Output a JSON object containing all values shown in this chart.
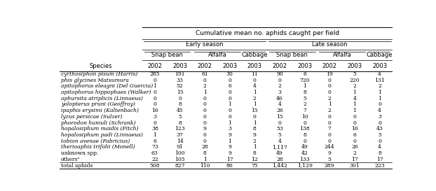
{
  "title": "Cumulative mean no. aphids caught per field",
  "species": [
    "cyrthosiphon pisum (Harris)",
    "phis glycines Matsumura",
    "apitophorus eleagni (Del Guercia)",
    "apitophorus hippophaes (Walker)",
    "aphursita atriplicis (Linnaeus)",
    "yolopterus pruni (Geoffroy)",
    "ipaphis erysimi (Kaltenbach)",
    "lyzus persicae (Sulzer)",
    "phorodon humuli (Schrank)",
    "hopalosiphum maidis (Fitch)",
    "hopalosiphum padi (Linnaeus)",
    "tobion avenae (Fabricius)",
    "therioaphis trifolii (Monell)",
    "unknown spp.",
    "othersᵃ",
    "total aphids"
  ],
  "species_italic": [
    true,
    true,
    true,
    true,
    true,
    true,
    true,
    true,
    true,
    true,
    true,
    true,
    true,
    false,
    false,
    false
  ],
  "data": [
    [
      285,
      191,
      61,
      30,
      11,
      90,
      6,
      19,
      5,
      4
    ],
    [
      0,
      33,
      0,
      0,
      0,
      0,
      720,
      0,
      220,
      131
    ],
    [
      1,
      52,
      2,
      6,
      4,
      2,
      1,
      0,
      2,
      2
    ],
    [
      0,
      15,
      1,
      0,
      1,
      3,
      8,
      0,
      1,
      1
    ],
    [
      0,
      0,
      0,
      0,
      2,
      46,
      5,
      2,
      4,
      1
    ],
    [
      0,
      8,
      0,
      1,
      1,
      4,
      2,
      1,
      1,
      0
    ],
    [
      16,
      45,
      0,
      0,
      15,
      26,
      7,
      2,
      1,
      4
    ],
    [
      3,
      5,
      0,
      0,
      0,
      15,
      10,
      0,
      0,
      3
    ],
    [
      0,
      8,
      0,
      1,
      1,
      0,
      0,
      0,
      0,
      0
    ],
    [
      38,
      123,
      9,
      3,
      8,
      53,
      138,
      7,
      16,
      43
    ],
    [
      1,
      37,
      0,
      9,
      9,
      5,
      8,
      0,
      6,
      5
    ],
    [
      6,
      14,
      0,
      1,
      2,
      4,
      0,
      0,
      0,
      0
    ],
    [
      73,
      91,
      28,
      9,
      1,
      1117,
      49,
      244,
      26,
      4
    ],
    [
      63,
      100,
      8,
      9,
      8,
      49,
      42,
      9,
      2,
      8
    ],
    [
      22,
      105,
      1,
      17,
      12,
      28,
      133,
      5,
      17,
      17
    ],
    [
      508,
      827,
      110,
      86,
      75,
      1442,
      1129,
      289,
      301,
      223
    ]
  ],
  "data_formatted": [
    [
      "285",
      "191",
      "61",
      "30",
      "11",
      "90",
      "6",
      "19",
      "5",
      "4"
    ],
    [
      "0",
      "33",
      "0",
      "0",
      "0",
      "0",
      "720",
      "0",
      "220",
      "131"
    ],
    [
      "1",
      "52",
      "2",
      "6",
      "4",
      "2",
      "1",
      "0",
      "2",
      "2"
    ],
    [
      "0",
      "15",
      "1",
      "0",
      "1",
      "3",
      "8",
      "0",
      "1",
      "1"
    ],
    [
      "0",
      "0",
      "0",
      "0",
      "2",
      "46",
      "5",
      "2",
      "4",
      "1"
    ],
    [
      "0",
      "8",
      "0",
      "1",
      "1",
      "4",
      "2",
      "1",
      "1",
      "0"
    ],
    [
      "16",
      "45",
      "0",
      "0",
      "15",
      "26",
      "7",
      "2",
      "1",
      "4"
    ],
    [
      "3",
      "5",
      "0",
      "0",
      "0",
      "15",
      "10",
      "0",
      "0",
      "3"
    ],
    [
      "0",
      "8",
      "0",
      "1",
      "1",
      "0",
      "0",
      "0",
      "0",
      "0"
    ],
    [
      "38",
      "123",
      "9",
      "3",
      "8",
      "53",
      "138",
      "7",
      "16",
      "43"
    ],
    [
      "1",
      "37",
      "0",
      "9",
      "9",
      "5",
      "8",
      "0",
      "6",
      "5"
    ],
    [
      "6",
      "14",
      "0",
      "1",
      "2",
      "4",
      "0",
      "0",
      "0",
      "0"
    ],
    [
      "73",
      "91",
      "28",
      "9",
      "1",
      "1,117",
      "49",
      "244",
      "26",
      "4"
    ],
    [
      "63",
      "100",
      "8",
      "9",
      "8",
      "49",
      "42",
      "9",
      "2",
      "8"
    ],
    [
      "22",
      "105",
      "1",
      "17",
      "12",
      "28",
      "133",
      "5",
      "17",
      "17"
    ],
    [
      "508",
      "827",
      "110",
      "86",
      "75",
      "1,442",
      "1,129",
      "289",
      "301",
      "223"
    ]
  ],
  "years": [
    "2002",
    "2003",
    "2002",
    "2003",
    "2003",
    "2002",
    "2003",
    "2002",
    "2003",
    "2003"
  ],
  "crops": [
    {
      "label": "Snap bean",
      "ci0": 0,
      "ci1": 1
    },
    {
      "label": "Alfalfa",
      "ci0": 2,
      "ci1": 3
    },
    {
      "label": "Cabbage",
      "ci0": 4,
      "ci1": 4
    },
    {
      "label": "Snap bean",
      "ci0": 5,
      "ci1": 6
    },
    {
      "label": "Alfalfa",
      "ci0": 7,
      "ci1": 8
    },
    {
      "label": "Cabbage",
      "ci0": 9,
      "ci1": 9
    }
  ],
  "bg_color": "#ffffff",
  "text_color": "#000000",
  "line_color": "#000000",
  "fs_title": 6.5,
  "fs_header": 6.0,
  "fs_data": 5.5
}
